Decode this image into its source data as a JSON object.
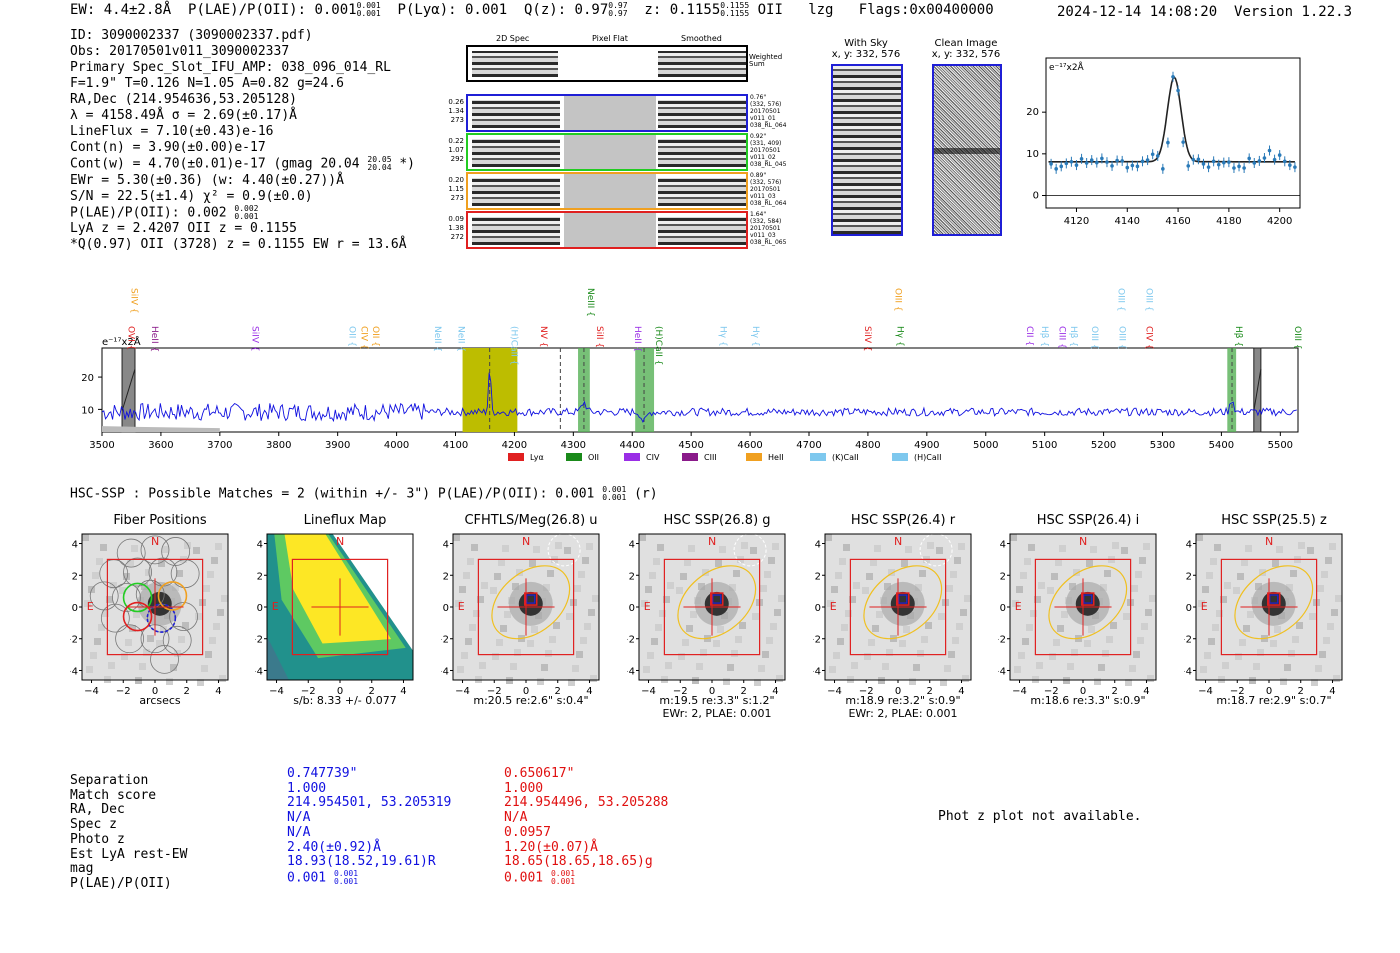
{
  "header": {
    "ew": "EW: 4.4±2.8Å",
    "plae": "P(LAE)/P(OII): 0.001",
    "plae_sup": "0.001",
    "plae_sub": "0.001",
    "plya": "P(Lyα): 0.001",
    "qz": "Q(z): 0.97",
    "qz_sup": "0.97",
    "qz_sub": "0.97",
    "z": "z: 0.1155",
    "z_sup": "0.1155",
    "z_sub": "0.1155",
    "z_line": "OII",
    "lzg": "lzg",
    "flags": "Flags:0x00400000",
    "timestamp": "2024-12-14 14:08:20",
    "version": "Version 1.22.3"
  },
  "info": {
    "lines": [
      "ID: 3090002337 (3090002337.pdf)",
      "Obs: 20170501v011_3090002337",
      "Primary Spec_Slot_IFU_AMP: 038_096_014_RL",
      "F=1.9\"  T=0.126  N=1.05  A=0.82  g=24.6",
      "RA,Dec (214.954636,53.205128)",
      "λ = 4158.49Å  σ = 2.69(±0.17)Å",
      "LineFlux = 7.10(±0.43)e-16",
      "Cont(n) = 3.90(±0.00)e-17",
      "Cont(w) = 4.70(±0.01)e-17 (gmag 20.04",
      "EWr = 5.30(±0.36) (w: 4.40(±0.27))Å",
      "S/N = 22.5(±1.4)  χ² = 0.9(±0.0)",
      "P(LAE)/P(OII): 0.002",
      "LyA z = 2.4207  OII z = 0.1155",
      "*Q(0.97) OII (3728) z = 0.1155  EW r = 13.6Å"
    ],
    "gmag_sup": "20.05",
    "gmag_sub": "20.04",
    "gmag_end": "*)",
    "plae2_sup": "0.002",
    "plae2_sub": "0.001"
  },
  "cutouts": {
    "col_2d": "2D Spec",
    "col_flat": "Pixel Flat",
    "col_smooth": "Smoothed",
    "weighted": "Weighted Sum",
    "rows": [
      {
        "left1": "0.26",
        "left2": "1.34",
        "left3": "273",
        "r1": "0.76\"",
        "r2": "(332, 576)",
        "r3": "20170501",
        "r4": "v011_01",
        "r5": "038_RL_064",
        "color": "#1f1fd6"
      },
      {
        "left1": "0.22",
        "left2": "1.07",
        "left3": "292",
        "r1": "0.92\"",
        "r2": "(331, 409)",
        "r3": "20170501",
        "r4": "v011_02",
        "r5": "038_RL_045",
        "color": "#22cc22"
      },
      {
        "left1": "0.20",
        "left2": "1.15",
        "left3": "273",
        "r1": "0.89\"",
        "r2": "(332, 576)",
        "r3": "20170501",
        "r4": "v011_03",
        "r5": "038_RL_064",
        "color": "#f0a020"
      },
      {
        "left1": "0.09",
        "left2": "1.38",
        "left3": "272",
        "r1": "1.64\"",
        "r2": "(332, 584)",
        "r3": "20170501",
        "r4": "v011_03",
        "r5": "038_RL_065",
        "color": "#e02020"
      }
    ]
  },
  "sky": {
    "with_sky": "With Sky",
    "with_sky_xy": "x, y: 332, 576",
    "clean": "Clean Image",
    "clean_xy": "x, y: 332, 576"
  },
  "chart_data": [
    {
      "type": "scatter",
      "title": "",
      "ylabel": "e⁻¹⁷x2Å",
      "xlim": [
        4108,
        4208
      ],
      "ylim": [
        -3,
        33
      ],
      "xticks": [
        4120,
        4140,
        4160,
        4180,
        4200
      ],
      "yticks": [
        0,
        10,
        20
      ],
      "points_x": [
        4110,
        4112,
        4114,
        4116,
        4118,
        4120,
        4122,
        4124,
        4126,
        4128,
        4130,
        4132,
        4134,
        4136,
        4138,
        4140,
        4142,
        4144,
        4146,
        4148,
        4150,
        4152,
        4154,
        4156,
        4158,
        4160,
        4162,
        4164,
        4166,
        4168,
        4170,
        4172,
        4174,
        4176,
        4178,
        4180,
        4182,
        4184,
        4186,
        4188,
        4190,
        4192,
        4194,
        4196,
        4198,
        4200,
        4202,
        4204,
        4206
      ],
      "points_y": [
        7.6,
        6.4,
        7.0,
        7.7,
        8.1,
        7.3,
        8.8,
        7.8,
        8.5,
        7.9,
        8.9,
        8.0,
        7.1,
        8.4,
        8.3,
        6.7,
        7.2,
        7.0,
        8.2,
        8.5,
        9.9,
        9.5,
        6.4,
        12.7,
        28.5,
        25.2,
        12.8,
        7.1,
        8.6,
        8.7,
        7.6,
        6.8,
        8.2,
        7.4,
        7.9,
        8.0,
        6.6,
        7.0,
        6.6,
        8.9,
        7.8,
        8.3,
        9.0,
        10.8,
        8.6,
        9.7,
        8.2,
        7.3,
        6.8
      ],
      "fit": {
        "center": 4158.49,
        "sigma": 2.69,
        "peak": 20.3,
        "continuum": 8.1
      }
    },
    {
      "type": "line",
      "ylabel": "e⁻¹⁷x2Å",
      "xlim": [
        3500,
        5530
      ],
      "ylim": [
        3,
        29
      ],
      "xticks": [
        3500,
        3600,
        3700,
        3800,
        3900,
        4000,
        4100,
        4200,
        4300,
        4400,
        4500,
        4600,
        4700,
        4800,
        4900,
        5000,
        5100,
        5200,
        5300,
        5400,
        5500
      ],
      "yticks": [
        10,
        20
      ],
      "continuum": 9.2,
      "emission_peak_x": 4158,
      "emission_peak_y": 28,
      "highlight_bands": [
        [
          4112,
          4205
        ]
      ],
      "green_bands": [
        [
          4308,
          4328
        ],
        [
          4405,
          4437
        ],
        [
          5410,
          5425
        ]
      ],
      "gray_bands": [
        [
          3534,
          3556
        ],
        [
          5455,
          5467
        ]
      ],
      "dashed_lines": [
        4158,
        4278,
        4318,
        4420,
        5418
      ],
      "line_labels": [
        {
          "name": "SiIV",
          "x": 3545,
          "color": "#f0a020",
          "row": "top"
        },
        {
          "name": "OVI",
          "x": 3540,
          "color": "#e02020",
          "row": "low"
        },
        {
          "name": "HeII",
          "x": 3580,
          "color": "#8a1a8a",
          "row": "low"
        },
        {
          "name": "SiIV",
          "x": 3750,
          "color": "#9a2ee6",
          "row": "low"
        },
        {
          "name": "OII",
          "x": 3915,
          "color": "#7ec8ee",
          "row": "low"
        },
        {
          "name": "CIV",
          "x": 3935,
          "color": "#f0a020",
          "row": "low"
        },
        {
          "name": "OII",
          "x": 3955,
          "color": "#f0a020",
          "row": "low"
        },
        {
          "name": "NeII",
          "x": 4060,
          "color": "#7ec8ee",
          "row": "low"
        },
        {
          "name": "NeII",
          "x": 4100,
          "color": "#7ec8ee",
          "row": "low"
        },
        {
          "name": "(H)CaII",
          "x": 4190,
          "color": "#7ec8ee",
          "row": "low"
        },
        {
          "name": "NV",
          "x": 4240,
          "color": "#e02020",
          "row": "low"
        },
        {
          "name": "NeIII",
          "x": 4320,
          "color": "#1a8a1a",
          "row": "top"
        },
        {
          "name": "SiII",
          "x": 4335,
          "color": "#e02020",
          "row": "low"
        },
        {
          "name": "HeII",
          "x": 4400,
          "color": "#9a2ee6",
          "row": "low"
        },
        {
          "name": "(H)CaII",
          "x": 4435,
          "color": "#1a8a1a",
          "row": "low"
        },
        {
          "name": "Hγ",
          "x": 4545,
          "color": "#7ec8ee",
          "row": "low"
        },
        {
          "name": "Hγ",
          "x": 4600,
          "color": "#7ec8ee",
          "row": "low"
        },
        {
          "name": "SiIV",
          "x": 4790,
          "color": "#e02020",
          "row": "low"
        },
        {
          "name": "OIII",
          "x": 4842,
          "color": "#f0a020",
          "row": "top"
        },
        {
          "name": "Hγ",
          "x": 4845,
          "color": "#1a8a1a",
          "row": "low"
        },
        {
          "name": "CII",
          "x": 5065,
          "color": "#9a2ee6",
          "row": "low"
        },
        {
          "name": "Hβ",
          "x": 5090,
          "color": "#7ec8ee",
          "row": "low"
        },
        {
          "name": "CIII",
          "x": 5120,
          "color": "#9a2ee6",
          "row": "low"
        },
        {
          "name": "Hβ",
          "x": 5140,
          "color": "#7ec8ee",
          "row": "low"
        },
        {
          "name": "OIII",
          "x": 5175,
          "color": "#7ec8ee",
          "row": "low"
        },
        {
          "name": "OIII",
          "x": 5220,
          "color": "#7ec8ee",
          "row": "top"
        },
        {
          "name": "OIII",
          "x": 5222,
          "color": "#7ec8ee",
          "row": "low"
        },
        {
          "name": "OIII",
          "x": 5268,
          "color": "#7ec8ee",
          "row": "top"
        },
        {
          "name": "CIV",
          "x": 5268,
          "color": "#e02020",
          "row": "low"
        },
        {
          "name": "Hβ",
          "x": 5420,
          "color": "#1a8a1a",
          "row": "low"
        },
        {
          "name": "OIII",
          "x": 5520,
          "color": "#1a8a1a",
          "row": "low"
        }
      ],
      "legend": [
        {
          "name": "Lyα",
          "color": "#e02020"
        },
        {
          "name": "OII",
          "color": "#1a8a1a"
        },
        {
          "name": "CIV",
          "color": "#9a2ee6"
        },
        {
          "name": "CIII",
          "color": "#8a1a8a"
        },
        {
          "name": "HeII",
          "color": "#f0a020"
        },
        {
          "name": "(K)CaII",
          "color": "#7ec8ee"
        },
        {
          "name": "(H)CaII",
          "color": "#7ec8ee"
        }
      ]
    }
  ],
  "hsc": {
    "title": "HSC-SSP : Possible Matches = 2 (within +/- 3\")  P(LAE)/P(OII): 0.001",
    "sup": "0.001",
    "sub": "0.001",
    "end": "(r)",
    "panels": [
      {
        "title": "Fiber Positions",
        "foot1": "arcsecs",
        "foot2": "",
        "kind": "fiber"
      },
      {
        "title": "Lineflux Map",
        "foot1": "s/b: 8.33 +/- 0.077",
        "foot2": "",
        "kind": "flux"
      },
      {
        "title": "CFHTLS/Meg(26.8) u",
        "foot1": "m:20.5  re:2.6\"  s:0.4\"",
        "foot2": "",
        "kind": "img"
      },
      {
        "title": "HSC SSP(26.8) g",
        "foot1": "m:19.5  re:3.3\"  s:1.2\"",
        "foot2": "EWr: 2, PLAE: 0.001",
        "kind": "img"
      },
      {
        "title": "HSC SSP(26.4) r",
        "foot1": "m:18.9  re:3.2\"  s:0.9\"",
        "foot2": "EWr: 2, PLAE: 0.001",
        "kind": "img"
      },
      {
        "title": "HSC SSP(26.4) i",
        "foot1": "m:18.6  re:3.3\"  s:0.9\"",
        "foot2": "",
        "kind": "img"
      },
      {
        "title": "HSC SSP(25.5) z",
        "foot1": "m:18.7  re:2.9\"  s:0.7\"",
        "foot2": "",
        "kind": "img"
      }
    ],
    "axis_ticks": [
      "−4",
      "−2",
      "0",
      "2",
      "4"
    ],
    "north": "N",
    "east": "E"
  },
  "table": {
    "labels": [
      "Separation",
      "Match score",
      "RA, Dec",
      "Spec z",
      "Photo z",
      "Est LyA rest-EW",
      "mag",
      "P(LAE)/P(OII)"
    ],
    "col1": [
      "0.747739\"",
      "1.000",
      "214.954501, 53.205319",
      "N/A",
      "N/A",
      "2.40(±0.92)Å",
      "18.93(18.52,19.61)R",
      "0.001"
    ],
    "col2": [
      "0.650617\"",
      "1.000",
      "214.954496, 53.205288",
      "N/A",
      "0.0957",
      "1.20(±0.07)Å",
      "18.65(18.65,18.65)g",
      "0.001"
    ],
    "c1_sup": "0.001",
    "c1_sub": "0.001",
    "c2_sup": "0.001",
    "c2_sub": "0.001",
    "col1_color": "#1010e0",
    "col2_color": "#e01010"
  },
  "photz_note": "Phot z plot not available."
}
